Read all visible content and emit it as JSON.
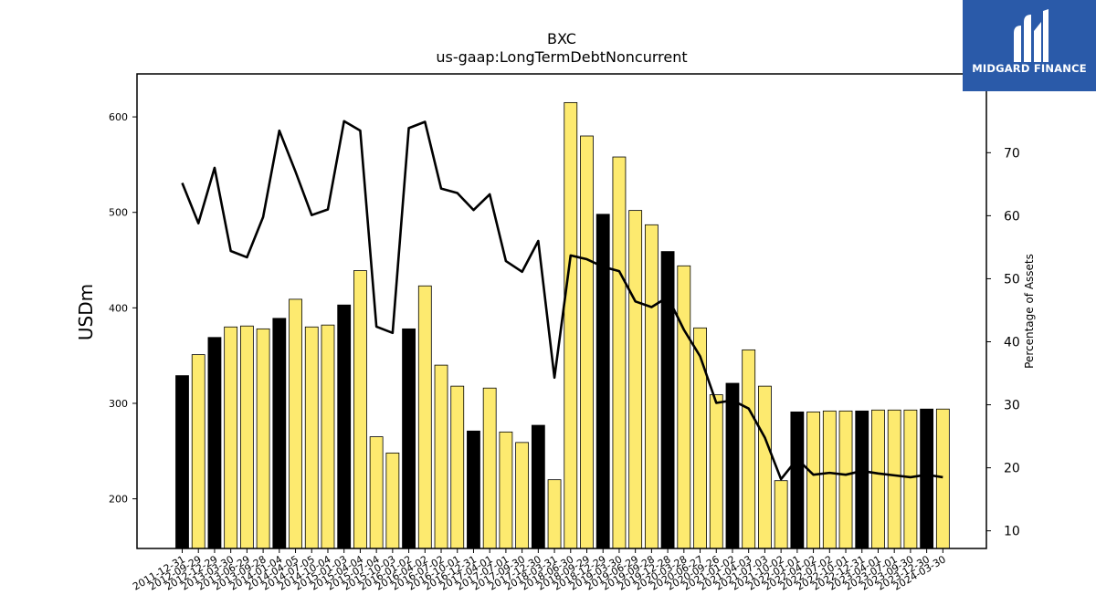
{
  "brand": {
    "name": "MIDGARD FINANCE",
    "color": "#2a5aa9"
  },
  "chart_data": {
    "type": "bar",
    "title": "BXC",
    "subtitle": "us-gaap:LongTermDebtNoncurrent",
    "ylabel": "USDm",
    "y2label": "Percentage of Assets",
    "ylim": [
      148,
      645
    ],
    "y2lim": [
      7.2,
      82.5
    ],
    "yticks": [
      200,
      300,
      400,
      500,
      600
    ],
    "y2ticks": [
      10,
      20,
      30,
      40,
      50,
      60,
      70
    ],
    "colors": {
      "annual": "#000000",
      "quarterly": "#fdea6f",
      "line": "#000000"
    },
    "categories": [
      "2011-12-31",
      "2012-09-29",
      "2012-12-29",
      "2013-03-30",
      "2013-06-29",
      "2013-09-28",
      "2014-01-04",
      "2014-04-05",
      "2014-07-05",
      "2014-10-04",
      "2015-01-03",
      "2015-04-04",
      "2015-07-04",
      "2015-10-03",
      "2016-01-02",
      "2016-04-02",
      "2016-07-02",
      "2016-10-01",
      "2016-12-31",
      "2017-04-01",
      "2017-07-01",
      "2017-09-30",
      "2017-12-30",
      "2018-03-31",
      "2018-06-30",
      "2018-09-29",
      "2018-12-29",
      "2019-03-30",
      "2019-06-29",
      "2019-09-28",
      "2019-12-28",
      "2020-03-28",
      "2020-06-27",
      "2020-09-26",
      "2021-01-02",
      "2021-04-03",
      "2021-07-03",
      "2021-10-02",
      "2022-01-01",
      "2022-04-02",
      "2022-07-02",
      "2022-10-01",
      "2022-12-31",
      "2023-04-01",
      "2023-07-01",
      "2023-09-30",
      "2023-12-30",
      "2024-03-30"
    ],
    "values": [
      329,
      351,
      369,
      380,
      381,
      378,
      389,
      409,
      380,
      382,
      403,
      439,
      265,
      248,
      378,
      423,
      340,
      318,
      271,
      316,
      270,
      259,
      277,
      220,
      615,
      580,
      498,
      558,
      502,
      487,
      459,
      444,
      379,
      309,
      321,
      356,
      318,
      219,
      291,
      291,
      292,
      292,
      292,
      293,
      293,
      293,
      294,
      294
    ],
    "annual": [
      true,
      false,
      true,
      false,
      false,
      false,
      true,
      false,
      false,
      false,
      true,
      false,
      false,
      false,
      true,
      false,
      false,
      false,
      true,
      false,
      false,
      false,
      true,
      false,
      false,
      false,
      true,
      false,
      false,
      false,
      true,
      false,
      false,
      false,
      true,
      false,
      false,
      false,
      true,
      false,
      false,
      false,
      true,
      false,
      false,
      false,
      true,
      false
    ],
    "pct_of_assets": [
      65.2,
      58.8,
      67.6,
      54.4,
      53.4,
      59.8,
      73.5,
      67.0,
      60.1,
      61.0,
      75.0,
      73.5,
      42.4,
      41.4,
      73.9,
      74.9,
      64.3,
      63.6,
      60.9,
      63.4,
      52.8,
      51.1,
      56.0,
      34.3,
      53.7,
      53.1,
      51.9,
      51.2,
      46.4,
      45.5,
      47.1,
      41.9,
      37.7,
      30.3,
      30.7,
      29.4,
      24.8,
      18.2,
      21.4,
      18.9,
      19.2,
      18.9,
      19.5,
      19.1,
      18.8,
      18.5,
      18.9,
      18.5
    ]
  }
}
